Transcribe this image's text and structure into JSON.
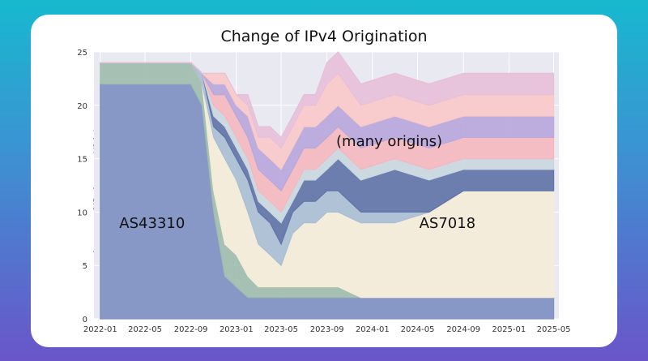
{
  "chart_data": {
    "type": "area",
    "title": "Change of IPv4 Origination",
    "xlabel": "",
    "ylabel": "Amount of IPv4 space (/24s)",
    "x_tick_labels": [
      "2022-01",
      "2022-05",
      "2022-09",
      "2023-01",
      "2023-05",
      "2023-09",
      "2024-01",
      "2024-05",
      "2024-09",
      "2025-01",
      "2025-05"
    ],
    "y_tick_labels": [
      "0",
      "5",
      "10",
      "15",
      "20",
      "25"
    ],
    "ylim": [
      0,
      25
    ],
    "xlim": [
      "2021-12-15",
      "2025-05-15"
    ],
    "grid": true,
    "annotations": [
      "AS43310",
      "AS7018",
      "(many origins)"
    ],
    "x": [
      "2022-01",
      "2022-07",
      "2022-09",
      "2022-10",
      "2022-11",
      "2022-12",
      "2023-01",
      "2023-02",
      "2023-03",
      "2023-04",
      "2023-05",
      "2023-06",
      "2023-07",
      "2023-08",
      "2023-09",
      "2023-10",
      "2023-12",
      "2024-03",
      "2024-06",
      "2024-09",
      "2024-12",
      "2025-03",
      "2025-05"
    ],
    "series": [
      {
        "values": [
          22,
          22,
          22,
          20,
          10,
          4,
          3,
          2,
          2,
          2,
          2,
          2,
          2,
          2,
          2,
          2,
          2,
          2,
          2,
          2,
          2,
          2,
          2
        ]
      },
      {
        "values": [
          2,
          2,
          2,
          2,
          2,
          3,
          3,
          2,
          1,
          1,
          1,
          1,
          1,
          1,
          1,
          1,
          0,
          0,
          0,
          0,
          0,
          0,
          0
        ]
      },
      {
        "values": [
          0,
          0,
          0,
          0,
          5,
          8,
          7,
          6,
          4,
          3,
          2,
          5,
          6,
          6,
          7,
          7,
          7,
          7,
          8,
          10,
          10,
          10,
          10
        ]
      },
      {
        "values": [
          0,
          0,
          0,
          1,
          1,
          2,
          2,
          3,
          3,
          3,
          2,
          2,
          2,
          2,
          2,
          2,
          1,
          1,
          0,
          0,
          0,
          0,
          0
        ]
      },
      {
        "values": [
          0,
          0,
          0,
          0,
          1,
          1,
          1,
          1,
          1,
          1,
          2,
          1,
          2,
          2,
          2,
          3,
          3,
          4,
          3,
          2,
          2,
          2,
          2
        ]
      },
      {
        "values": [
          0,
          0,
          0,
          0,
          1,
          1,
          1,
          1,
          1,
          1,
          1,
          1,
          1,
          1,
          1,
          1,
          1,
          1,
          1,
          1,
          1,
          1,
          1
        ]
      },
      {
        "values": [
          0,
          0,
          0,
          0,
          1,
          2,
          2,
          2,
          2,
          2,
          2,
          2,
          2,
          2,
          2,
          2,
          2,
          2,
          2,
          2,
          2,
          2,
          2
        ]
      },
      {
        "values": [
          0,
          0,
          0,
          0,
          1,
          1,
          1,
          2,
          2,
          2,
          2,
          2,
          2,
          2,
          2,
          2,
          2,
          2,
          2,
          2,
          2,
          2,
          2
        ]
      },
      {
        "values": [
          0,
          0,
          0,
          0,
          1,
          1,
          1,
          1,
          1,
          2,
          2,
          2,
          2,
          2,
          3,
          3,
          2,
          2,
          2,
          2,
          2,
          2,
          2
        ]
      },
      {
        "values": [
          0,
          0,
          0,
          0,
          0,
          0,
          0,
          1,
          1,
          1,
          1,
          1,
          1,
          1,
          2,
          2,
          2,
          2,
          2,
          2,
          2,
          2,
          2
        ]
      }
    ],
    "colors": [
      "#7f90c2",
      "#9fbdae",
      "#f3ecd8",
      "#aabed2",
      "#5f74a8",
      "#c9d7df",
      "#f4b7bf",
      "#b8a7dc",
      "#f8c9c9",
      "#e6c0d9"
    ]
  }
}
